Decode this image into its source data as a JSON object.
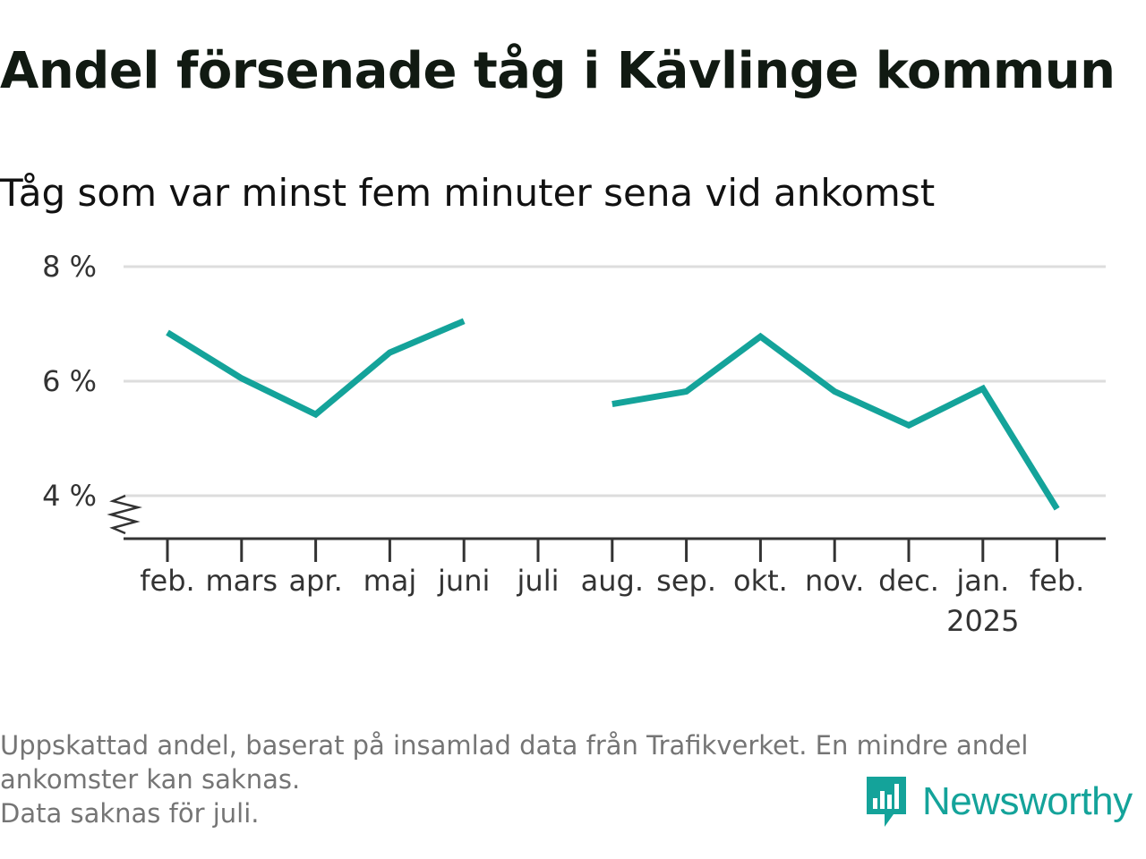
{
  "title": "Andel försenade tåg i Kävlinge kommun",
  "subtitle": "Tåg som var minst fem minuter sena vid ankomst",
  "chart_data": {
    "type": "line",
    "categories": [
      "feb.",
      "mars",
      "apr.",
      "maj",
      "juni",
      "juli",
      "aug.",
      "sep.",
      "okt.",
      "nov.",
      "dec.",
      "jan.",
      "feb."
    ],
    "x_sublabels": [
      "",
      "",
      "",
      "",
      "",
      "",
      "",
      "",
      "",
      "",
      "",
      "2025",
      ""
    ],
    "series": [
      {
        "values": [
          6.85,
          6.05,
          5.42,
          6.5,
          7.05,
          null,
          5.6,
          5.82,
          6.78,
          5.82,
          5.23,
          5.87,
          3.77
        ],
        "color": "#14a39a"
      }
    ],
    "y_ticks": [
      4,
      6,
      8
    ],
    "y_tick_labels": [
      "4 %",
      "6 %",
      "8 %"
    ],
    "ylim": [
      3.25,
      8
    ],
    "y_axis_break": true,
    "grid": true,
    "line_color": "#14a39a",
    "grid_color": "#dddddd"
  },
  "footnote": {
    "line1": "Uppskattad andel, baserat på insamlad data från Trafikverket. En mindre andel",
    "line2": "ankomster kan saknas.",
    "line3": "Data saknas för juli."
  },
  "brand": {
    "name": "Newsworthy",
    "icon": "newsworthy-logo-icon",
    "color": "#14a39a"
  }
}
